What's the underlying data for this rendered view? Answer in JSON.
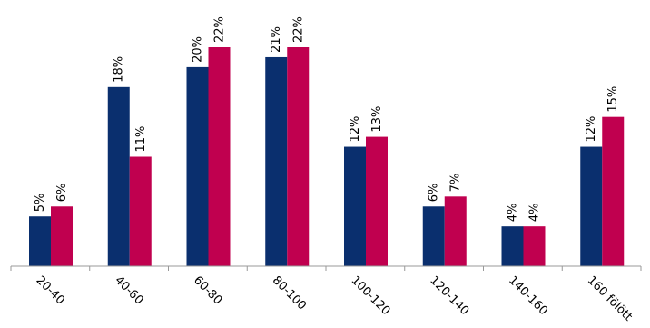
{
  "chart_data": {
    "type": "bar",
    "categories": [
      "20-40",
      "40-60",
      "60-80",
      "80-100",
      "100-120",
      "120-140",
      "140-160",
      "160 fölött"
    ],
    "series": [
      {
        "values": [
          5,
          18,
          20,
          21,
          12,
          6,
          4,
          12
        ],
        "labels": [
          "5%",
          "18%",
          "20%",
          "21%",
          "12%",
          "6%",
          "4%",
          "12%"
        ],
        "color": "#0A2F6E"
      },
      {
        "values": [
          6,
          11,
          22,
          22,
          13,
          7,
          4,
          15
        ],
        "labels": [
          "6%",
          "11%",
          "22%",
          "22%",
          "13%",
          "7%",
          "4%",
          "15%"
        ],
        "color": "#C0004F"
      }
    ],
    "ylim": [
      0,
      22
    ],
    "grid": false,
    "legend": "none"
  }
}
